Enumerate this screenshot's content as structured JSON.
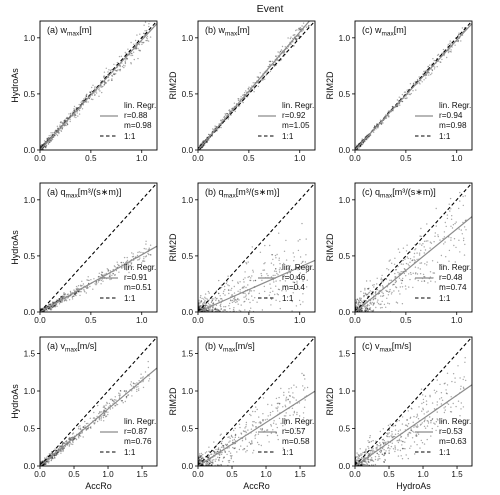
{
  "figure_title": "Event",
  "colors": {
    "scatter": "#000000",
    "regression": "#8c8c8c",
    "one_to_one": "#000000",
    "frame": "#000000"
  },
  "legend_labels": {
    "regression": "lin. Regr.",
    "one_to_one": "1:1"
  },
  "chart_data": [
    {
      "type": "scatter",
      "row": 0,
      "col": 0,
      "title": "(a) w",
      "title_sub": "max",
      "title_unit": "[m]",
      "xlabel": "",
      "ylabel": "HydroAs",
      "xlim": [
        0,
        1.15
      ],
      "ylim": [
        0,
        1.15
      ],
      "xticks": [
        "0.0",
        "0.5",
        "1.0"
      ],
      "yticks": [
        "0.0",
        "0.5",
        "1.0"
      ],
      "regression": {
        "r": 0.88,
        "m": 0.98
      },
      "legend": [
        "r=0.88",
        "m=0.98"
      ]
    },
    {
      "type": "scatter",
      "row": 0,
      "col": 1,
      "title": "(b) w",
      "title_sub": "max",
      "title_unit": "[m]",
      "xlabel": "",
      "ylabel": "RIM2D",
      "xlim": [
        0,
        1.15
      ],
      "ylim": [
        0,
        1.15
      ],
      "xticks": [
        "0.0",
        "0.5",
        "1.0"
      ],
      "yticks": [
        "0.0",
        "0.5",
        "1.0"
      ],
      "regression": {
        "r": 0.92,
        "m": 1.05
      },
      "legend": [
        "r=0.92",
        "m=1.05"
      ]
    },
    {
      "type": "scatter",
      "row": 0,
      "col": 2,
      "title": "(c) w",
      "title_sub": "max",
      "title_unit": "[m]",
      "xlabel": "",
      "ylabel": "RIM2D",
      "xlim": [
        0,
        1.15
      ],
      "ylim": [
        0,
        1.15
      ],
      "xticks": [
        "0.0",
        "0.5",
        "1.0"
      ],
      "yticks": [
        "0.0",
        "0.5",
        "1.0"
      ],
      "regression": {
        "r": 0.94,
        "m": 0.98
      },
      "legend": [
        "r=0.94",
        "m=0.98"
      ]
    },
    {
      "type": "scatter",
      "row": 1,
      "col": 0,
      "title": "(a) q",
      "title_sub": "max",
      "title_unit": "[m³/(s∗m)]",
      "xlabel": "",
      "ylabel": "HydroAs",
      "xlim": [
        0,
        1.15
      ],
      "ylim": [
        0,
        1.15
      ],
      "xticks": [
        "0.0",
        "0.5",
        "1.0"
      ],
      "yticks": [
        "0.0",
        "0.5",
        "1.0"
      ],
      "regression": {
        "r": 0.91,
        "m": 0.51
      },
      "legend": [
        "r=0.91",
        "m=0.51"
      ]
    },
    {
      "type": "scatter",
      "row": 1,
      "col": 1,
      "title": "(b) q",
      "title_sub": "max",
      "title_unit": "[m³/(s∗m)]",
      "xlabel": "",
      "ylabel": "RIM2D",
      "xlim": [
        0,
        1.15
      ],
      "ylim": [
        0,
        1.15
      ],
      "xticks": [
        "0.0",
        "0.5",
        "1.0"
      ],
      "yticks": [
        "0.0",
        "0.5",
        "1.0"
      ],
      "regression": {
        "r": 0.46,
        "m": 0.4
      },
      "legend": [
        "r=0.46",
        "m=0.4"
      ]
    },
    {
      "type": "scatter",
      "row": 1,
      "col": 2,
      "title": "(c) q",
      "title_sub": "max",
      "title_unit": "[m³/(s∗m)]",
      "xlabel": "",
      "ylabel": "RIM2D",
      "xlim": [
        0,
        1.15
      ],
      "ylim": [
        0,
        1.15
      ],
      "xticks": [
        "0.0",
        "0.5",
        "1.0"
      ],
      "yticks": [
        "0.0",
        "0.5",
        "1.0"
      ],
      "regression": {
        "r": 0.48,
        "m": 0.74
      },
      "legend": [
        "r=0.48",
        "m=0.74"
      ]
    },
    {
      "type": "scatter",
      "row": 2,
      "col": 0,
      "title": "(a) v",
      "title_sub": "max",
      "title_unit": "[m/s]",
      "xlabel": "AccRo",
      "ylabel": "HydroAs",
      "xlim": [
        0,
        1.72
      ],
      "ylim": [
        0,
        1.72
      ],
      "xticks": [
        "0.0",
        "0.5",
        "1.0",
        "1.5"
      ],
      "yticks": [
        "0.0",
        "0.5",
        "1.0",
        "1.5"
      ],
      "regression": {
        "r": 0.87,
        "m": 0.76
      },
      "legend": [
        "r=0.87",
        "m=0.76"
      ]
    },
    {
      "type": "scatter",
      "row": 2,
      "col": 1,
      "title": "(b) v",
      "title_sub": "max",
      "title_unit": "[m/s]",
      "xlabel": "AccRo",
      "ylabel": "RIM2D",
      "xlim": [
        0,
        1.72
      ],
      "ylim": [
        0,
        1.72
      ],
      "xticks": [
        "0.0",
        "0.5",
        "1.0",
        "1.5"
      ],
      "yticks": [
        "0.0",
        "0.5",
        "1.0",
        "1.5"
      ],
      "regression": {
        "r": 0.57,
        "m": 0.58
      },
      "legend": [
        "r=0.57",
        "m=0.58"
      ]
    },
    {
      "type": "scatter",
      "row": 2,
      "col": 2,
      "title": "(c) v",
      "title_sub": "max",
      "title_unit": "[m/s]",
      "xlabel": "HydroAs",
      "ylabel": "RIM2D",
      "xlim": [
        0,
        1.72
      ],
      "ylim": [
        0,
        1.72
      ],
      "xticks": [
        "0.0",
        "0.5",
        "1.0",
        "1.5"
      ],
      "yticks": [
        "0.0",
        "0.5",
        "1.0",
        "1.5"
      ],
      "regression": {
        "r": 0.53,
        "m": 0.63
      },
      "legend": [
        "r=0.53",
        "m=0.63"
      ]
    }
  ]
}
